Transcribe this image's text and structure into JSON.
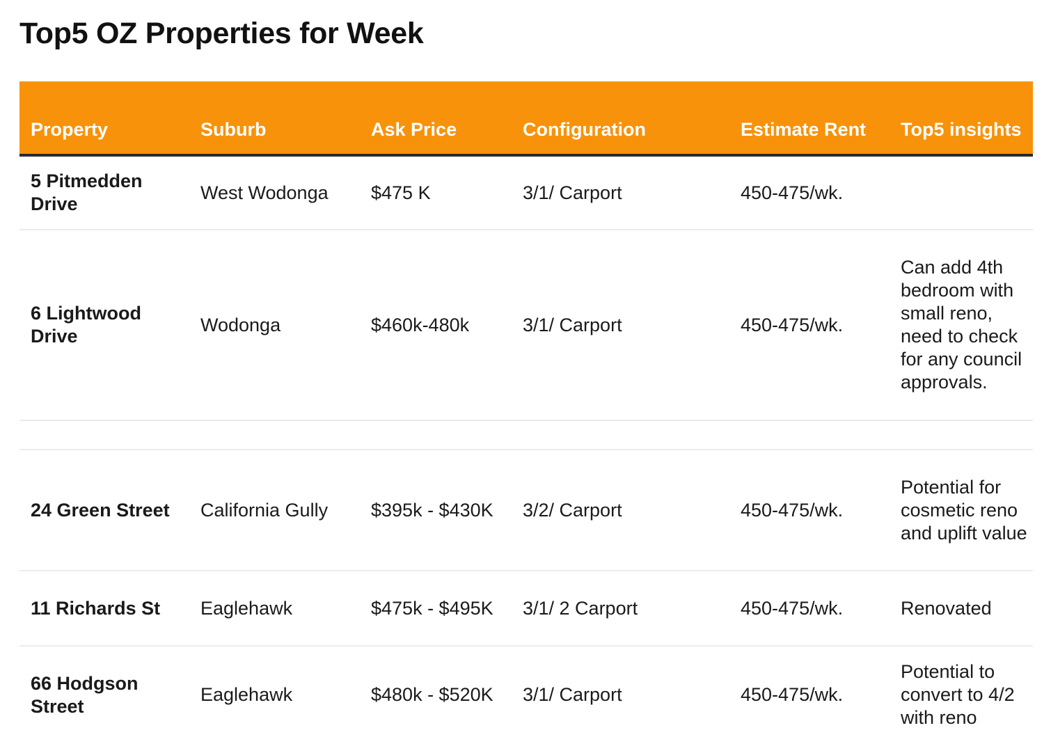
{
  "title": "Top5 OZ Properties for Week",
  "table": {
    "headers": {
      "property": "Property",
      "suburb": "Suburb",
      "ask_price": "Ask Price",
      "configuration": "Configuration",
      "estimate_rent": "Estimate Rent",
      "insights": "Top5 insights"
    },
    "rows": [
      {
        "property": "5 Pitmedden Drive",
        "suburb": "West Wodonga",
        "ask_price": "$475 K",
        "configuration": "3/1/ Carport",
        "estimate_rent": "450-475/wk.",
        "insights": ""
      },
      {
        "property": "6 Lightwood Drive",
        "suburb": "Wodonga",
        "ask_price": "$460k-480k",
        "configuration": "3/1/ Carport",
        "estimate_rent": "450-475/wk.",
        "insights": "Can add 4th bedroom with small reno, need to check for any council approvals."
      },
      {
        "property": "24 Green Street",
        "suburb": "California Gully",
        "ask_price": "$395k - $430K",
        "configuration": "3/2/ Carport",
        "estimate_rent": "450-475/wk.",
        "insights": "Potential for cosmetic reno and uplift value"
      },
      {
        "property": "11 Richards St",
        "suburb": "Eaglehawk",
        "ask_price": "$475k - $495K",
        "configuration": "3/1/ 2 Carport",
        "estimate_rent": "450-475/wk.",
        "insights": "Renovated"
      },
      {
        "property": "66 Hodgson Street",
        "suburb": "Eaglehawk",
        "ask_price": "$480k - $520K",
        "configuration": "3/1/ Carport",
        "estimate_rent": "450-475/wk.",
        "insights": "Potential to convert to 4/2 with reno"
      }
    ]
  },
  "colors": {
    "header_background": "#f7920a",
    "header_text": "#ffffff",
    "header_rule": "#2b2b2b",
    "row_divider": "#ececec"
  }
}
